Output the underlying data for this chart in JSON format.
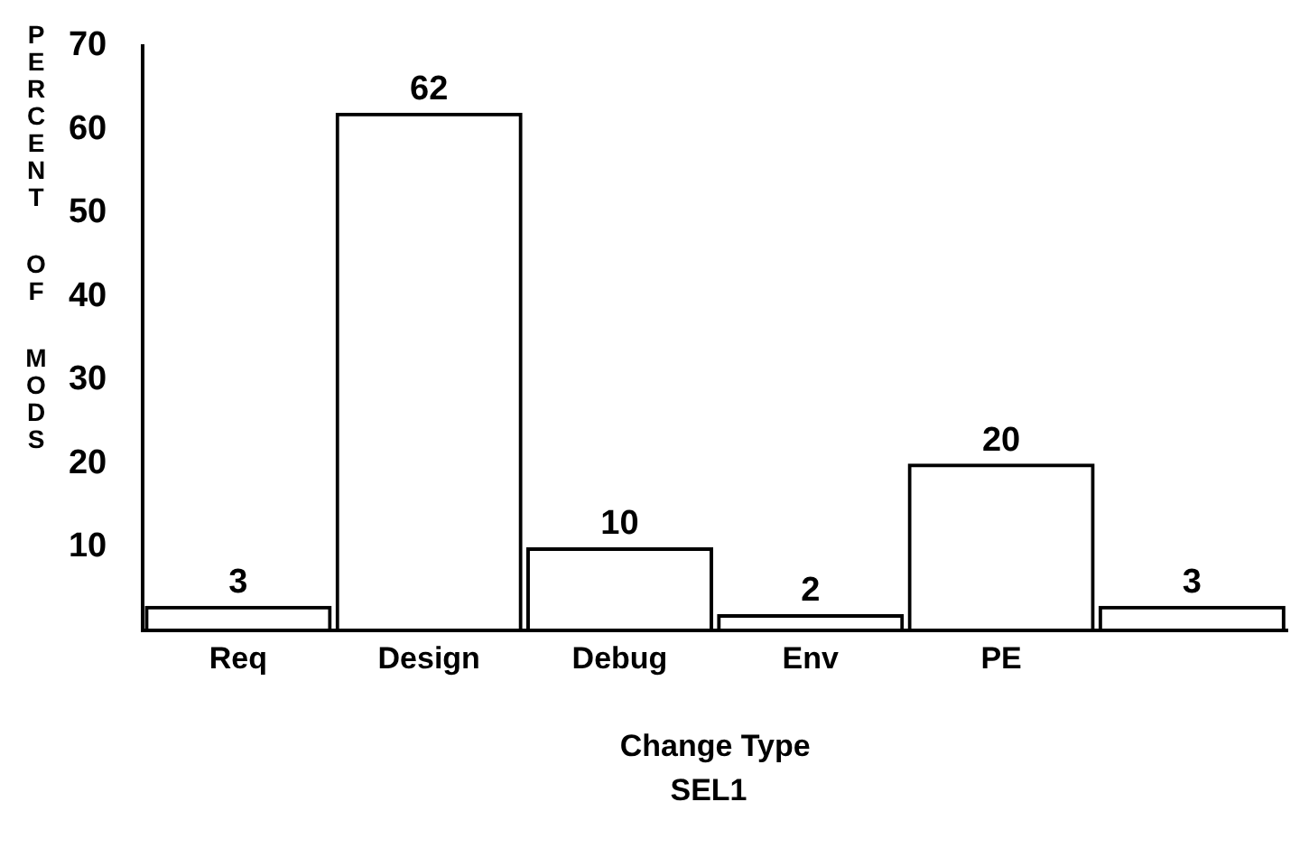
{
  "chart_data": {
    "type": "bar",
    "xlabel": "Change Type",
    "ylabel": "PERCENT OF MODS",
    "annotations": [
      "SEL1"
    ],
    "categories": [
      "Req",
      "Design",
      "Debug",
      "Env",
      "PE",
      null
    ],
    "values": [
      3,
      62,
      10,
      2,
      20,
      3
    ],
    "color": "#000000",
    "ylim": [
      0,
      70
    ],
    "yticks": [
      10,
      20,
      30,
      40,
      50,
      60,
      70
    ],
    "grid": false,
    "legend": false,
    "data_labels": true
  }
}
